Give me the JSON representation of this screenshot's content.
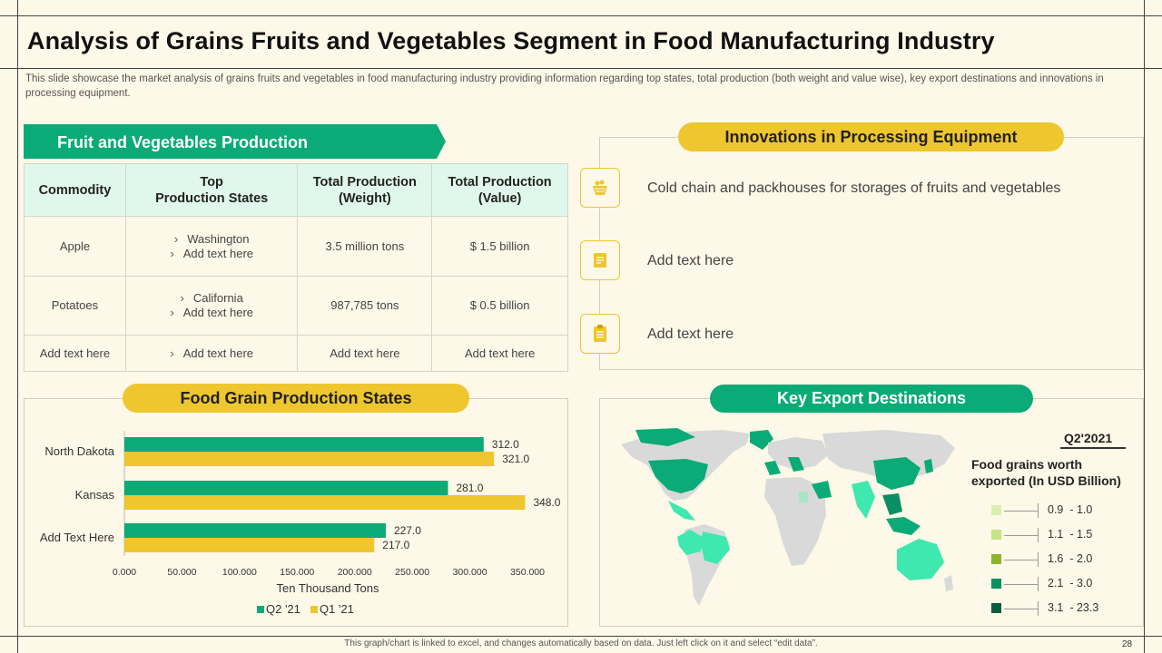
{
  "slide": {
    "title": "Analysis of Grains Fruits and Vegetables Segment in Food Manufacturing Industry",
    "subtitle": "This slide showcase the market analysis of grains fruits and vegetables  in food manufacturing  industry providing  information  regarding top states, total production (both weight and value wise), key export destinations and innovations  in processing equipment.",
    "footer": "This graph/chart is linked to excel,  and changes automatically based on data. Just left click on it and select “edit data”.",
    "page_number": "28"
  },
  "production": {
    "header": "Fruit and Vegetables Production",
    "columns": [
      "Commodity",
      "Top\nProduction States",
      "Total Production\n(Weight)",
      "Total Production\n(Value)"
    ],
    "rows": [
      {
        "commodity": "Apple",
        "states": [
          "Washington",
          "Add text here"
        ],
        "weight": "3.5 million tons",
        "value": "$ 1.5 billion"
      },
      {
        "commodity": "Potatoes",
        "states": [
          "California",
          "Add text here"
        ],
        "weight": "987,785 tons",
        "value": "$ 0.5 billion"
      },
      {
        "commodity": "Add text here",
        "states": [
          "Add text here"
        ],
        "weight": "Add text here",
        "value": "Add text here"
      }
    ]
  },
  "innovations": {
    "header": "Innovations in Processing Equipment",
    "items": [
      {
        "icon": "fruit-basket-icon",
        "text": "Cold chain and packhouses for storages of fruits and vegetables"
      },
      {
        "icon": "document-icon",
        "text": "Add text here"
      },
      {
        "icon": "clipboard-icon",
        "text": "Add text here"
      }
    ]
  },
  "grain": {
    "header": "Food Grain Production States"
  },
  "chart_data": {
    "type": "bar",
    "orientation": "horizontal",
    "categories": [
      "North Dakota",
      "Kansas",
      "Add Text Here"
    ],
    "series": [
      {
        "name": "Q2 '21",
        "values": [
          312.0,
          281.0,
          227.0
        ],
        "color": "#0aab77"
      },
      {
        "name": "Q1 '21",
        "values": [
          321.0,
          348.0,
          217.0
        ],
        "color": "#eec62e"
      }
    ],
    "value_labels": [
      [
        "312.0",
        "281.0",
        "227.0"
      ],
      [
        "321.0",
        "348.0",
        "217.0"
      ]
    ],
    "xlabel": "Ten Thousand  Tons",
    "xticks": [
      "0.000",
      "50.000",
      "100.000",
      "150.000",
      "200.000",
      "250.000",
      "300.000",
      "350.000"
    ],
    "xlim": [
      0,
      350
    ],
    "legend_position": "bottom"
  },
  "exports": {
    "header": "Key Export Destinations",
    "period": "Q2'2021",
    "legend_title": "Food grains worth exported  (In USD Billion)",
    "ranges": [
      {
        "label": "0.9  - 1.0",
        "color": "#d9f1b0"
      },
      {
        "label": "1.1  - 1.5",
        "color": "#c3e583"
      },
      {
        "label": "1.6  - 2.0",
        "color": "#8db52c"
      },
      {
        "label": "2.1  - 3.0",
        "color": "#0a8f63"
      },
      {
        "label": "3.1  - 23.3",
        "color": "#0a5c3c"
      }
    ]
  },
  "colors": {
    "accent_green": "#0aab77",
    "accent_yellow": "#eec62e",
    "background": "#fdf8e7"
  }
}
